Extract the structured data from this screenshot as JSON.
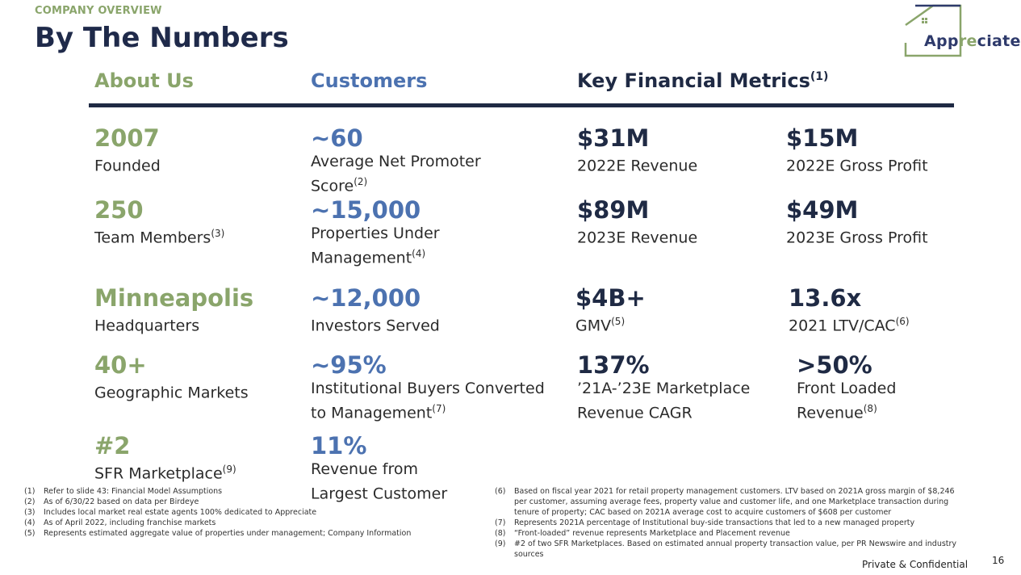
{
  "header": {
    "kicker": "COMPANY OVERVIEW",
    "title": "By The Numbers",
    "logo_text_pre": "App",
    "logo_text_re": "re",
    "logo_text_post": "ciate"
  },
  "columns": {
    "about": "About Us",
    "customers": "Customers",
    "kfm": "Key Financial Metrics",
    "kfm_sup": "(1)"
  },
  "about": [
    {
      "value": "2007",
      "label": "Founded",
      "sup": ""
    },
    {
      "value": "250",
      "label": "Team Members",
      "sup": "(3)"
    },
    {
      "value": "Minneapolis",
      "label": "Headquarters",
      "sup": ""
    },
    {
      "value": "40+",
      "label": "Geographic Markets",
      "sup": ""
    },
    {
      "value": "#2",
      "label": "SFR Marketplace",
      "sup": "(9)"
    }
  ],
  "customers": [
    {
      "value": "~60",
      "label": "Average Net Promoter\nScore",
      "sup": "(2)"
    },
    {
      "value": "~15,000",
      "label": "Properties Under\nManagement",
      "sup": "(4)"
    },
    {
      "value": "~12,000",
      "label": "Investors Served",
      "sup": ""
    },
    {
      "value": "~95%",
      "label": "Institutional Buyers Converted\nto Management",
      "sup": "(7)"
    },
    {
      "value": "11%",
      "label": "Revenue from\nLargest Customer",
      "sup": ""
    }
  ],
  "kfm_left": [
    {
      "value": "$31M",
      "label": "2022E Revenue",
      "sup": ""
    },
    {
      "value": "$89M",
      "label": "2023E Revenue",
      "sup": ""
    },
    {
      "value": "$4B+",
      "label": "GMV",
      "sup": "(5)"
    },
    {
      "value": "137%",
      "label": "’21A-’23E Marketplace\nRevenue CAGR",
      "sup": ""
    }
  ],
  "kfm_right": [
    {
      "value": "$15M",
      "label": "2022E Gross Profit",
      "sup": ""
    },
    {
      "value": "$49M",
      "label": "2023E Gross Profit",
      "sup": ""
    },
    {
      "value": "13.6x",
      "label": "2021 LTV/CAC",
      "sup": "(6)"
    },
    {
      "value": ">50%",
      "label": "Front Loaded\nRevenue",
      "sup": "(8)"
    }
  ],
  "footnotes_left": [
    {
      "num": "(1)",
      "text": "Refer to slide 43: Financial Model Assumptions"
    },
    {
      "num": "(2)",
      "text": "As of 6/30/22 based on data per Birdeye"
    },
    {
      "num": "(3)",
      "text": "Includes local market real estate agents 100% dedicated to Appreciate"
    },
    {
      "num": "(4)",
      "text": "As of April 2022, including franchise markets"
    },
    {
      "num": "(5)",
      "text": "Represents estimated aggregate value of properties under management; Company Information"
    }
  ],
  "footnotes_right": [
    {
      "num": "(6)",
      "text": "Based on fiscal year 2021 for retail property management customers. LTV based on 2021A gross margin of $8,246 per customer, assuming average fees, property value and customer life, and one Marketplace transaction during tenure of property; CAC based on 2021A average cost to acquire customers of $608 per customer"
    },
    {
      "num": "(7)",
      "text": "Represents 2021A percentage of Institutional buy-side transactions that led to a new managed property"
    },
    {
      "num": "(8)",
      "text": "“Front-loaded” revenue represents Marketplace and Placement revenue"
    },
    {
      "num": "(9)",
      "text": "#2 of two SFR Marketplaces. Based on estimated annual property transaction value, per PR Newswire and industry sources"
    }
  ],
  "footer": {
    "confidential": "Private & Confidential",
    "page": "16"
  }
}
